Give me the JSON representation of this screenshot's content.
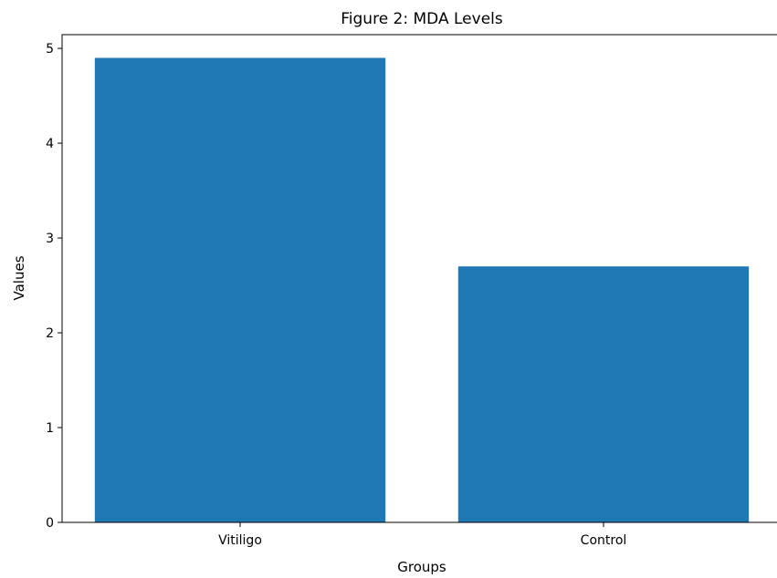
{
  "chart_data": {
    "type": "bar",
    "title": "Figure 2: MDA Levels",
    "xlabel": "Groups",
    "ylabel": "Values",
    "categories": [
      "Vitiligo",
      "Control"
    ],
    "values": [
      4.9,
      2.7
    ],
    "ylim": [
      0,
      5.145
    ],
    "yticks": [
      0,
      1,
      2,
      3,
      4,
      5
    ],
    "bar_color": "#1f77b4",
    "grid": false,
    "legend": "none"
  }
}
